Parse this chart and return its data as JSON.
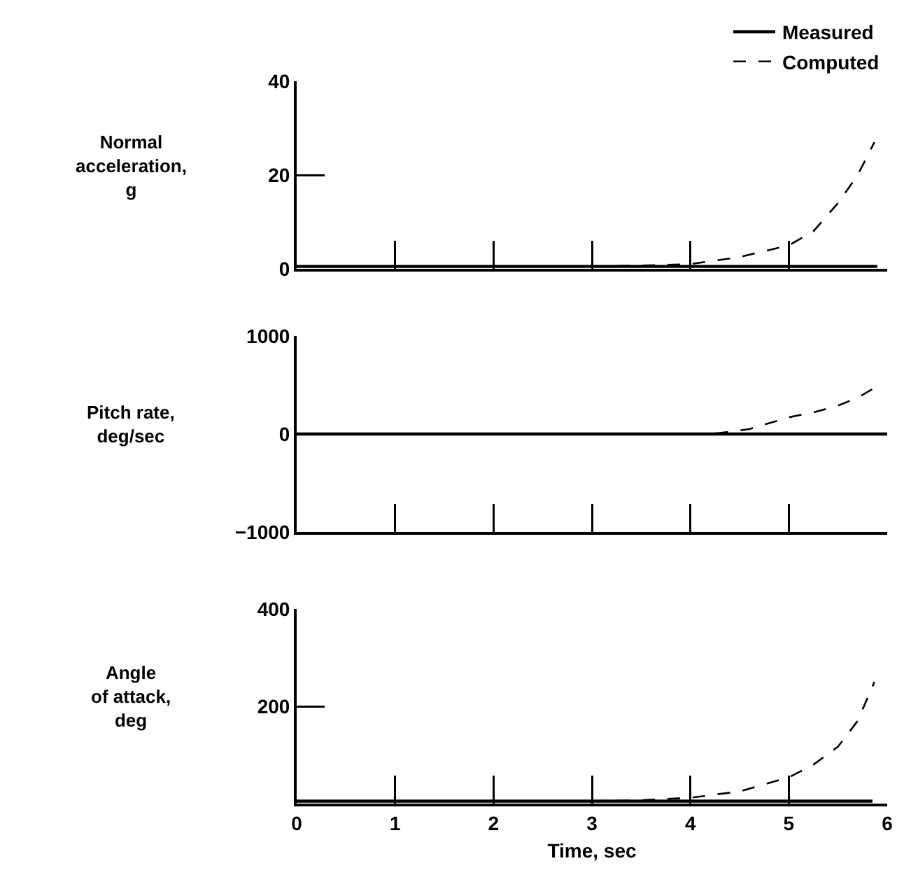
{
  "chart_data": [
    {
      "type": "line",
      "ylabel": "Normal\nacceleration,\ng",
      "xlim": [
        0,
        6
      ],
      "xticks": [
        0,
        1,
        2,
        3,
        4,
        5,
        6
      ],
      "ylim": [
        0,
        40
      ],
      "yticks": [
        0,
        20,
        40
      ],
      "tick_labels": "y",
      "legend": "top right",
      "series": [
        {
          "name": "Measured",
          "color": "#000000",
          "line_style": "solid",
          "x": [
            0,
            1,
            2,
            3,
            4,
            5,
            5.9
          ],
          "values": [
            0.5,
            0.5,
            0.5,
            0.5,
            0.5,
            0.5,
            0.5
          ]
        },
        {
          "name": "Computed",
          "color": "#000000",
          "line_style": "dashed",
          "x": [
            3,
            3.5,
            4,
            4.5,
            5,
            5.25,
            5.5,
            5.7,
            5.87
          ],
          "values": [
            0.5,
            0.7,
            1,
            2.5,
            5,
            8,
            14,
            20,
            27
          ]
        }
      ]
    },
    {
      "type": "line",
      "ylabel": "Pitch rate,\ndeg/sec",
      "xlim": [
        0,
        6
      ],
      "xticks": [
        0,
        1,
        2,
        3,
        4,
        5,
        6
      ],
      "ylim": [
        -1000,
        1000
      ],
      "yticks": [
        -1000,
        0,
        1000
      ],
      "tick_labels": "y",
      "series": [
        {
          "color": "#000000",
          "line_style": "solid",
          "x": [
            0,
            1,
            2,
            3,
            4,
            5,
            6
          ],
          "values": [
            0,
            0,
            0,
            0,
            0,
            0,
            0
          ]
        },
        {
          "color": "#000000",
          "line_style": "dashed",
          "x": [
            4,
            4.3,
            4.6,
            5,
            5.25,
            5.5,
            5.7,
            5.87
          ],
          "values": [
            0,
            10,
            50,
            170,
            220,
            290,
            370,
            470
          ]
        }
      ]
    },
    {
      "type": "line",
      "ylabel": "Angle\nof attack,\ndeg",
      "xlabel": "Time, sec",
      "xlim": [
        0,
        6
      ],
      "xticks": [
        0,
        1,
        2,
        3,
        4,
        5,
        6
      ],
      "ylim": [
        0,
        400
      ],
      "yticks": [
        200,
        400
      ],
      "series": [
        {
          "color": "#000000",
          "line_style": "solid",
          "x": [
            0,
            1,
            2,
            3,
            4,
            5,
            5.85
          ],
          "values": [
            5,
            5,
            5,
            5,
            5,
            5,
            5
          ]
        },
        {
          "color": "#000000",
          "line_style": "dashed",
          "x": [
            3,
            3.5,
            4,
            4.5,
            5,
            5.25,
            5.5,
            5.7,
            5.87
          ],
          "values": [
            5,
            7,
            12,
            25,
            54,
            80,
            117,
            170,
            250
          ]
        }
      ]
    }
  ]
}
